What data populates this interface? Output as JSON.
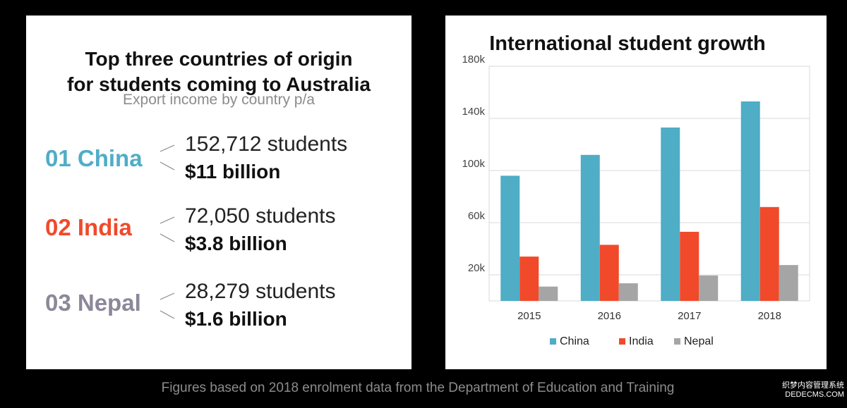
{
  "left_panel": {
    "title_line1": "Top three countries of origin",
    "title_line2": "for students coming to Australia",
    "subtitle": "Export income by country p/a",
    "countries": [
      {
        "rank_name": "01 China",
        "students": "152,712 students",
        "income": "$11 billion",
        "color": "#4fadc6"
      },
      {
        "rank_name": "02 India",
        "students": "72,050 students",
        "income": "$3.8 billion",
        "color": "#f04a2b"
      },
      {
        "rank_name": "03 Nepal",
        "students": "28,279 students",
        "income": "$1.6 billion",
        "color": "#8c8799"
      }
    ]
  },
  "chart_data": {
    "type": "bar",
    "title": "International student growth",
    "categories": [
      "2015",
      "2016",
      "2017",
      "2018"
    ],
    "series": [
      {
        "name": "China",
        "color": "#4fadc6",
        "values": [
          96000,
          112000,
          133000,
          153000
        ]
      },
      {
        "name": "India",
        "color": "#f04a2b",
        "values": [
          34000,
          43000,
          53000,
          72000
        ]
      },
      {
        "name": "Nepal",
        "color": "#a5a5a5",
        "values": [
          11000,
          13500,
          19500,
          27500
        ]
      }
    ],
    "yticks": [
      "180k",
      "140k",
      "100k",
      "60k",
      "20k"
    ],
    "ytick_values": [
      180000,
      140000,
      100000,
      60000,
      20000
    ],
    "ylim": [
      0,
      180000
    ],
    "grid": true,
    "legend_position": "bottom"
  },
  "footnote": "Figures based on 2018 enrolment data from the Department of Education and Training",
  "watermark": {
    "line1": "织梦内容管理系统",
    "line2": "DEDECMS.COM"
  }
}
